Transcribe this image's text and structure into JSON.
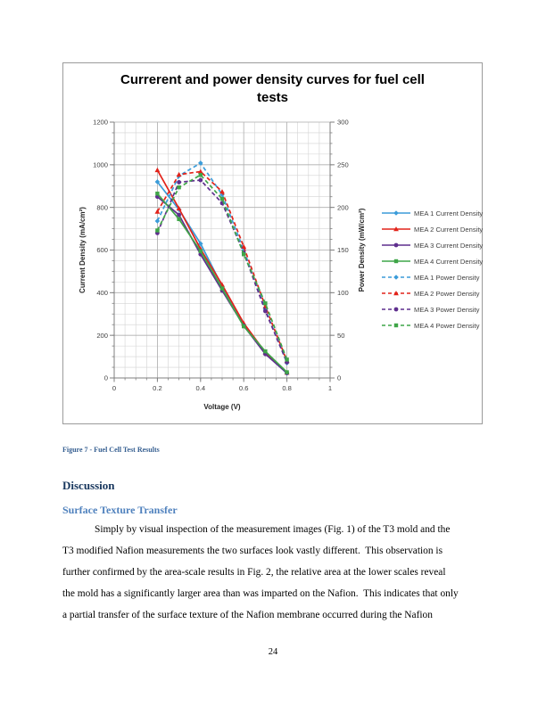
{
  "page": {
    "number": "24"
  },
  "figure": {
    "caption": "Figure 7 - Fuel Cell Test Results"
  },
  "headings": {
    "h1": "Discussion",
    "h2": "Surface Texture Transfer"
  },
  "paragraph": {
    "lines": [
      "Simply by visual inspection of the measurement images (Fig. 1) of the T3 mold and the",
      "T3 modified Nafion measurements the two surfaces look vastly different.  This observation is",
      "further confirmed by the area-scale results in Fig. 2, the relative area at the lower scales reveal",
      "the mold has a significantly larger area than was imparted on the Nafion.  This indicates that only",
      "a partial transfer of the surface texture of the Nafion membrane occurred during the Nafion"
    ]
  },
  "chart_data": {
    "type": "line",
    "title": "Currerent and power density curves for fuel cell tests",
    "title_lines": [
      "Currerent and power density curves for fuel cell",
      "tests"
    ],
    "xlabel": "Voltage (V)",
    "ylabel_left": "Current Density (mA/cm²)",
    "ylabel_right": "Power Density (mW/cm²)",
    "xlim": [
      0,
      1
    ],
    "ylim_left": [
      0,
      1200
    ],
    "ylim_right": [
      0,
      300
    ],
    "x_ticks": [
      0,
      0.2,
      0.4,
      0.6,
      0.8,
      1
    ],
    "y_left_ticks": [
      0,
      200,
      400,
      600,
      800,
      1000,
      1200
    ],
    "y_right_ticks": [
      0,
      50,
      100,
      150,
      200,
      250,
      300
    ],
    "x_minor_step": 0.05,
    "y_minor_step": 50,
    "grid": true,
    "legend_position": "right",
    "x": [
      0.2,
      0.3,
      0.4,
      0.5,
      0.6,
      0.7,
      0.8
    ],
    "series": [
      {
        "name": "MEA 1 Current Density",
        "axis": "left",
        "style": "solid",
        "marker": "diamond",
        "color": "#3b9cd9",
        "values": [
          920,
          790,
          630,
          430,
          250,
          115,
          22
        ]
      },
      {
        "name": "MEA 2 Current Density",
        "axis": "left",
        "style": "solid",
        "marker": "triangle",
        "color": "#e2231a",
        "values": [
          975,
          795,
          605,
          437,
          257,
          120,
          25
        ]
      },
      {
        "name": "MEA 3 Current Density",
        "axis": "left",
        "style": "solid",
        "marker": "circle",
        "color": "#5f2f8e",
        "values": [
          850,
          765,
          580,
          410,
          245,
          112,
          23
        ]
      },
      {
        "name": "MEA 4 Current Density",
        "axis": "left",
        "style": "solid",
        "marker": "square",
        "color": "#3fa548",
        "values": [
          865,
          745,
          595,
          420,
          242,
          125,
          27
        ]
      },
      {
        "name": "MEA 1 Power Density",
        "axis": "right",
        "style": "dashed",
        "marker": "diamond",
        "color": "#3b9cd9",
        "values": [
          184,
          237,
          252,
          215,
          150,
          80.5,
          17.6
        ]
      },
      {
        "name": "MEA 2 Power Density",
        "axis": "right",
        "style": "dashed",
        "marker": "triangle",
        "color": "#e2231a",
        "values": [
          195,
          238.5,
          242,
          218.5,
          154,
          84,
          20
        ]
      },
      {
        "name": "MEA 3 Power Density",
        "axis": "right",
        "style": "dashed",
        "marker": "circle",
        "color": "#5f2f8e",
        "values": [
          170,
          229.5,
          232,
          205,
          147,
          78.4,
          18.4
        ]
      },
      {
        "name": "MEA 4 Power Density",
        "axis": "right",
        "style": "dashed",
        "marker": "square",
        "color": "#3fa548",
        "values": [
          173,
          223.5,
          238,
          210,
          145,
          87.5,
          21.6
        ]
      }
    ],
    "colors": {
      "grid_minor": "#d3d3d3",
      "grid_major": "#b0b0b0",
      "axis": "#7f7f7f",
      "chart_text": "#404040"
    }
  }
}
